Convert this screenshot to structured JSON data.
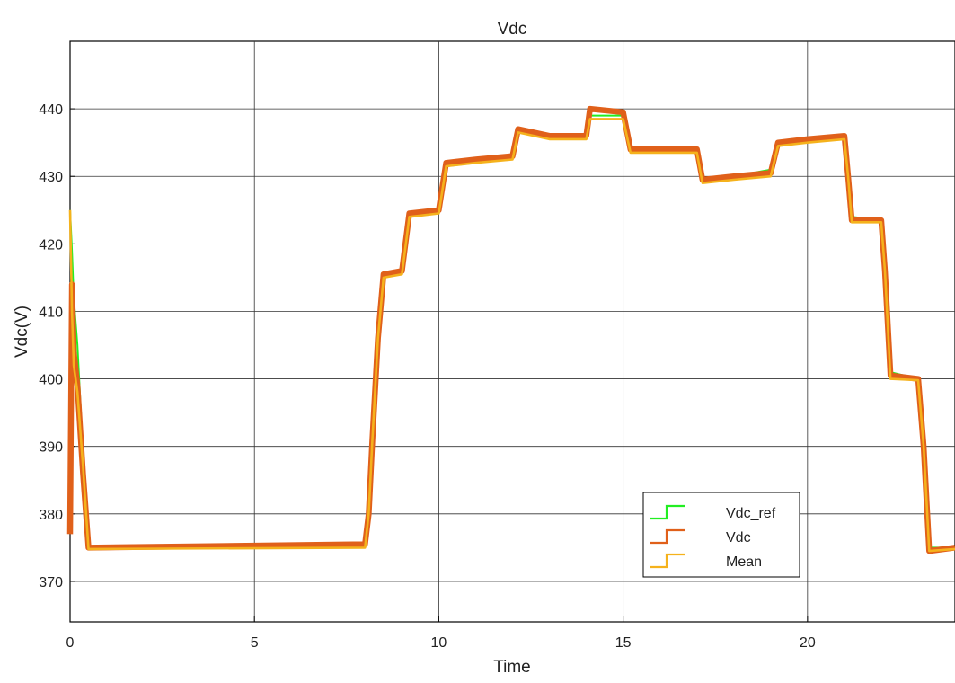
{
  "chart_data": {
    "type": "line",
    "title": "Vdc",
    "xlabel": "Time",
    "ylabel": "Vdc(V)",
    "xlim": [
      0,
      24
    ],
    "ylim": [
      364,
      450
    ],
    "xticks": [
      0,
      5,
      10,
      15,
      20
    ],
    "yticks": [
      370,
      380,
      390,
      400,
      410,
      420,
      430,
      440
    ],
    "grid": true,
    "legend_position": "bottom-right",
    "colors": {
      "Vdc_ref": "#22ee22",
      "Vdc": "#e0601a",
      "Mean": "#f5b21c"
    },
    "series": [
      {
        "name": "Vdc_ref",
        "x": [
          0,
          0.05,
          0.1,
          0.2,
          0.35,
          0.5,
          8.0,
          8.1,
          8.2,
          8.35,
          8.5,
          9.0,
          9.2,
          10.0,
          10.2,
          11.0,
          12.0,
          12.15,
          13.0,
          14.0,
          14.1,
          15.0,
          15.2,
          17.0,
          17.15,
          18.0,
          19.0,
          19.2,
          20.0,
          21.0,
          21.1,
          21.2,
          22.0,
          22.1,
          22.25,
          23.0,
          23.15,
          23.3,
          24.0
        ],
        "y": [
          425,
          419,
          412,
          405,
          389,
          374.8,
          375.2,
          380,
          392,
          407,
          415.5,
          416,
          424,
          425,
          431.5,
          432,
          433,
          437,
          436,
          436,
          439,
          439,
          434,
          434,
          429.5,
          430,
          431,
          435,
          435.5,
          436,
          430,
          424,
          423.5,
          416,
          401,
          400,
          390,
          375,
          375
        ]
      },
      {
        "name": "Vdc",
        "x": [
          0,
          0.05,
          0.1,
          0.2,
          0.35,
          0.5,
          8.0,
          8.1,
          8.2,
          8.35,
          8.5,
          9.0,
          9.2,
          10.0,
          10.2,
          11.0,
          12.0,
          12.15,
          13.0,
          14.0,
          14.1,
          15.0,
          15.2,
          17.0,
          17.15,
          18.0,
          19.0,
          19.2,
          20.0,
          21.0,
          21.1,
          21.2,
          22.0,
          22.1,
          22.25,
          23.0,
          23.15,
          23.3,
          24.0
        ],
        "y": [
          377,
          414,
          404,
          399,
          386,
          375,
          375.5,
          380,
          391,
          406,
          415.5,
          416,
          424.5,
          425,
          432,
          432.5,
          433,
          437,
          436,
          436,
          440,
          439.5,
          434,
          434,
          429.5,
          430,
          430.5,
          435,
          435.5,
          436,
          430,
          423.5,
          423.5,
          416,
          400.5,
          400,
          390,
          374.5,
          375
        ]
      },
      {
        "name": "Mean",
        "x": [
          0,
          0.05,
          0.1,
          0.2,
          0.35,
          0.5,
          8.0,
          8.1,
          8.2,
          8.35,
          8.5,
          9.0,
          9.2,
          10.0,
          10.2,
          11.0,
          12.0,
          12.15,
          13.0,
          14.0,
          14.1,
          15.0,
          15.2,
          17.0,
          17.15,
          18.0,
          19.0,
          19.2,
          20.0,
          21.0,
          21.1,
          21.2,
          22.0,
          22.1,
          22.25,
          23.0,
          23.15,
          23.3,
          24.0
        ],
        "y": [
          425,
          410,
          402,
          398,
          387,
          374.8,
          375,
          380,
          391,
          406,
          415,
          415.5,
          424,
          424.5,
          431.5,
          432,
          432.5,
          436.5,
          435.5,
          435.5,
          438.5,
          438.5,
          433.5,
          433.5,
          429,
          429.5,
          430,
          434.5,
          435,
          435.5,
          430,
          423.2,
          423.2,
          416,
          400,
          399.8,
          390,
          374.5,
          374.8
        ]
      }
    ]
  }
}
